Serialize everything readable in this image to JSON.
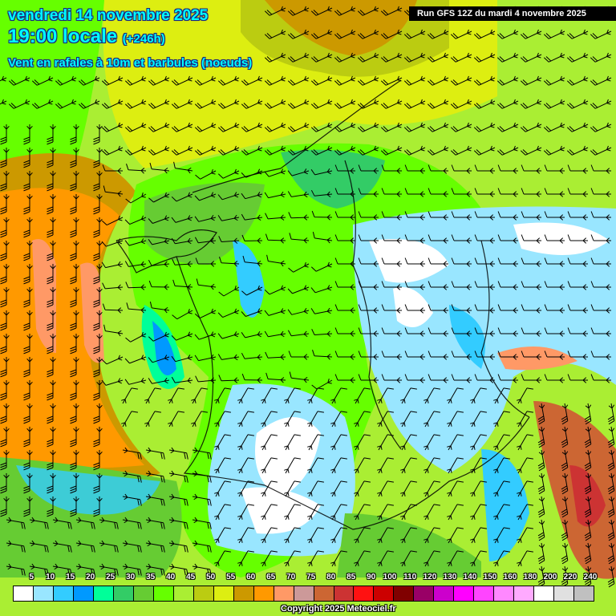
{
  "header": {
    "date": "vendredi 14 novembre 2025",
    "time": "19:00 locale",
    "lead": "(+246h)",
    "parameter": "Vent en rafales à 10m et barbules (noeuds)",
    "run": "Run GFS 12Z du mardi 4 novembre 2025"
  },
  "legend": {
    "labels": [
      "5",
      "10",
      "15",
      "20",
      "25",
      "30",
      "35",
      "40",
      "45",
      "50",
      "55",
      "60",
      "65",
      "70",
      "75",
      "80",
      "85",
      "90",
      "100",
      "110",
      "120",
      "130",
      "140",
      "150",
      "160",
      "180",
      "200",
      "220",
      "240"
    ],
    "colors": [
      "#ffffff",
      "#99e6ff",
      "#33ccff",
      "#0099ff",
      "#00ff99",
      "#33cc66",
      "#66cc33",
      "#66ff00",
      "#aaee33",
      "#bbcc11",
      "#ddee11",
      "#cc9900",
      "#ff9900",
      "#ff9966",
      "#cc9999",
      "#cc6633",
      "#cc3333",
      "#ff1111",
      "#cc0000",
      "#800000",
      "#990066",
      "#cc00cc",
      "#ff00ff",
      "#ff44ff",
      "#ff88ff",
      "#ffaaff",
      "#ffffff",
      "#e0e0e0",
      "#c0c0c0"
    ]
  },
  "footer": {
    "copyright": "Copyright 2025 Meteociel.fr"
  }
}
